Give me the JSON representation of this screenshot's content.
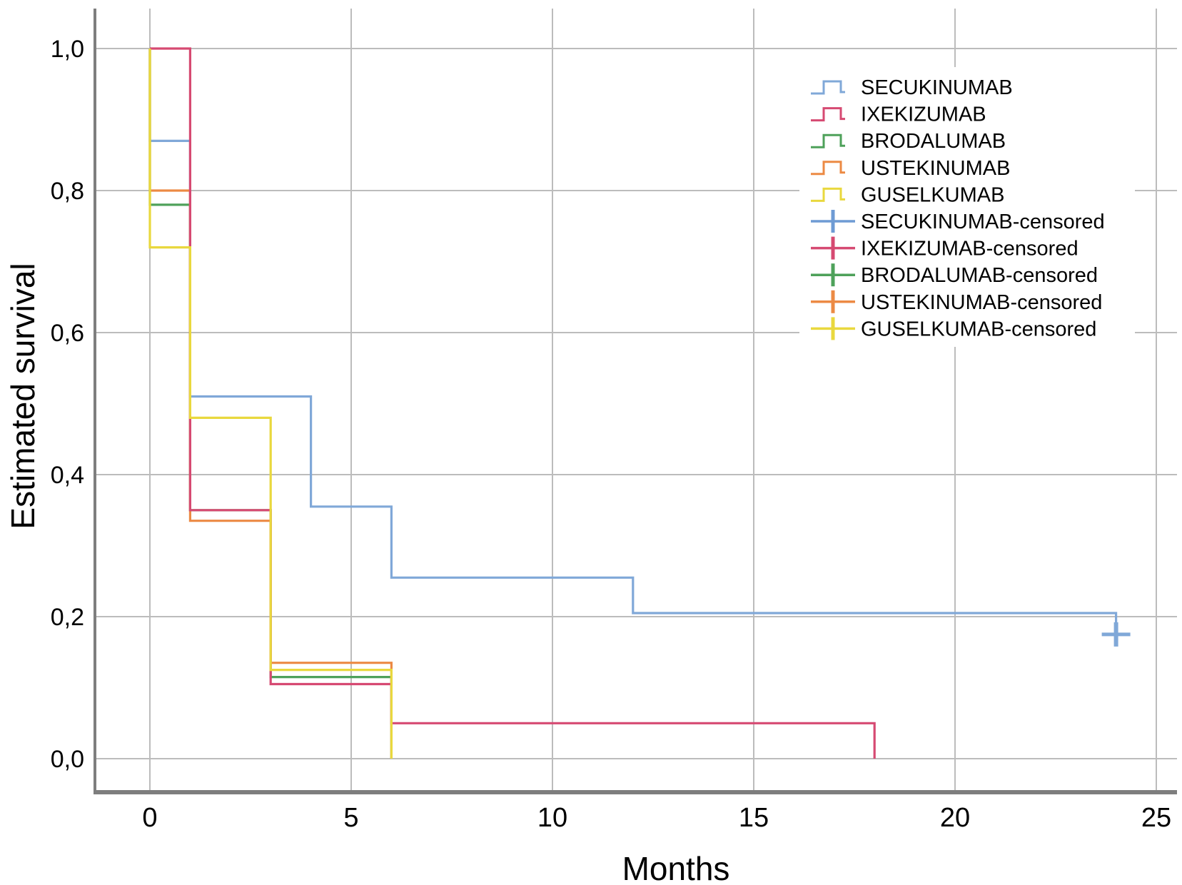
{
  "figure": {
    "background": "#ffffff",
    "grid_color": "#bcbcbc",
    "axis_color": "#7e7e7e",
    "text_color": "#000000"
  },
  "chart_data": {
    "type": "line",
    "subtype": "kaplan-meier-step-survival",
    "title": "",
    "xlabel": "Months",
    "ylabel": "Estimated survival",
    "xlim": [
      0,
      25
    ],
    "ylim": [
      0.0,
      1.0
    ],
    "grid": true,
    "legend_position": "top-right",
    "x_ticks": [
      {
        "v": 0,
        "label": "0"
      },
      {
        "v": 5,
        "label": "5"
      },
      {
        "v": 10,
        "label": "10"
      },
      {
        "v": 15,
        "label": "15"
      },
      {
        "v": 20,
        "label": "20"
      },
      {
        "v": 25,
        "label": "25"
      }
    ],
    "y_ticks": [
      {
        "v": 0.0,
        "label": "0,0"
      },
      {
        "v": 0.2,
        "label": "0,2"
      },
      {
        "v": 0.4,
        "label": "0,4"
      },
      {
        "v": 0.6,
        "label": "0,6"
      },
      {
        "v": 0.8,
        "label": "0,8"
      },
      {
        "v": 1.0,
        "label": "1,0"
      }
    ],
    "series": [
      {
        "name": "SECUKINUMAB",
        "color": "#80A8D8",
        "points": [
          [
            0,
            1.0
          ],
          [
            0,
            0.87
          ],
          [
            1,
            0.87
          ],
          [
            1,
            0.51
          ],
          [
            4,
            0.51
          ],
          [
            4,
            0.355
          ],
          [
            6,
            0.355
          ],
          [
            6,
            0.255
          ],
          [
            12,
            0.255
          ],
          [
            12,
            0.205
          ],
          [
            24,
            0.205
          ],
          [
            24,
            0.175
          ]
        ],
        "censored": [
          [
            24,
            0.175
          ]
        ]
      },
      {
        "name": "IXEKIZUMAB",
        "color": "#D64A72",
        "points": [
          [
            0,
            1.0
          ],
          [
            1,
            1.0
          ],
          [
            1,
            0.35
          ],
          [
            3,
            0.35
          ],
          [
            3,
            0.105
          ],
          [
            6,
            0.105
          ],
          [
            6,
            0.05
          ],
          [
            18,
            0.05
          ],
          [
            18,
            0.0
          ]
        ],
        "censored": []
      },
      {
        "name": "BRODALUMAB",
        "color": "#4EA15A",
        "points": [
          [
            0,
            1.0
          ],
          [
            0,
            0.78
          ],
          [
            1,
            0.78
          ],
          [
            1,
            0.35
          ],
          [
            3,
            0.35
          ],
          [
            3,
            0.115
          ],
          [
            6,
            0.115
          ],
          [
            6,
            0.0
          ]
        ],
        "censored": []
      },
      {
        "name": "USTEKINUMAB",
        "color": "#EC8A44",
        "points": [
          [
            0,
            1.0
          ],
          [
            0,
            0.8
          ],
          [
            1,
            0.8
          ],
          [
            1,
            0.335
          ],
          [
            3,
            0.335
          ],
          [
            3,
            0.135
          ],
          [
            6,
            0.135
          ],
          [
            6,
            0.0
          ]
        ],
        "censored": []
      },
      {
        "name": "GUSELKUMAB",
        "color": "#E9D83E",
        "points": [
          [
            0,
            1.0
          ],
          [
            0,
            0.72
          ],
          [
            1,
            0.72
          ],
          [
            1,
            0.48
          ],
          [
            3,
            0.48
          ],
          [
            3,
            0.125
          ],
          [
            6,
            0.125
          ],
          [
            6,
            0.0
          ]
        ],
        "censored": []
      }
    ],
    "legend": [
      {
        "label": "SECUKINUMAB",
        "marker": "step",
        "color": "#80A8D8"
      },
      {
        "label": "IXEKIZUMAB",
        "marker": "step",
        "color": "#D64A72"
      },
      {
        "label": "BRODALUMAB",
        "marker": "step",
        "color": "#4EA15A"
      },
      {
        "label": "USTEKINUMAB",
        "marker": "step",
        "color": "#EC8A44"
      },
      {
        "label": "GUSELKUMAB",
        "marker": "step",
        "color": "#E9D83E"
      },
      {
        "label": "SECUKINUMAB-censored",
        "marker": "plus",
        "color": "#6E9BD4"
      },
      {
        "label": "IXEKIZUMAB-censored",
        "marker": "plus",
        "color": "#D64A72"
      },
      {
        "label": "BRODALUMAB-censored",
        "marker": "plus",
        "color": "#4EA15A"
      },
      {
        "label": "USTEKINUMAB-censored",
        "marker": "plus",
        "color": "#EC8A44"
      },
      {
        "label": "GUSELKUMAB-censored",
        "marker": "plus",
        "color": "#E9D83E"
      }
    ]
  }
}
